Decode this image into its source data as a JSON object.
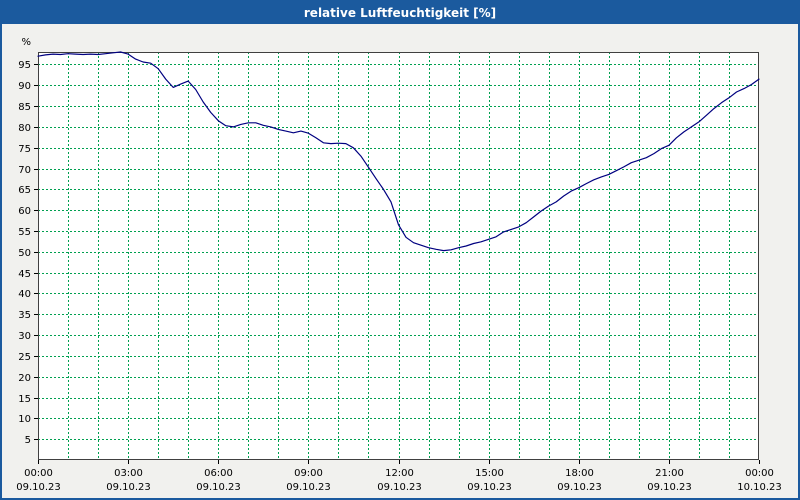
{
  "window": {
    "title": "relative Luftfeuchtigkeit [%]"
  },
  "colors": {
    "title_bar": "#1b5a9e",
    "title_text": "#ffffff",
    "frame": "#1b5a9e",
    "page_bg": "#f1f1ee",
    "plot_bg": "#ffffff",
    "plot_border": "#404040",
    "grid": "#00a050",
    "line": "#000080",
    "tick_text": "#000000"
  },
  "chart_data": {
    "type": "line",
    "title": "relative Luftfeuchtigkeit [%]",
    "ylabel": "%",
    "xlabel": "",
    "ylim": [
      0,
      98
    ],
    "xlim_hours": [
      0,
      24
    ],
    "grid": true,
    "grid_style": "green dashed, vertical every 1 hour, horizontal every 5 %",
    "legend": false,
    "y_ticks": [
      5,
      10,
      15,
      20,
      25,
      30,
      35,
      40,
      45,
      50,
      55,
      60,
      65,
      70,
      75,
      80,
      85,
      90,
      95
    ],
    "x_ticks": [
      {
        "hour": 0,
        "time": "00:00",
        "date": "09.10.23"
      },
      {
        "hour": 3,
        "time": "03:00",
        "date": "09.10.23"
      },
      {
        "hour": 6,
        "time": "06:00",
        "date": "09.10.23"
      },
      {
        "hour": 9,
        "time": "09:00",
        "date": "09.10.23"
      },
      {
        "hour": 12,
        "time": "12:00",
        "date": "09.10.23"
      },
      {
        "hour": 15,
        "time": "15:00",
        "date": "09.10.23"
      },
      {
        "hour": 18,
        "time": "18:00",
        "date": "09.10.23"
      },
      {
        "hour": 21,
        "time": "21:00",
        "date": "09.10.23"
      },
      {
        "hour": 24,
        "time": "00:00",
        "date": "10.10.23"
      }
    ],
    "series_name": "relative Luftfeuchtigkeit",
    "x_hours": [
      0,
      0.25,
      0.5,
      0.75,
      1,
      1.25,
      1.5,
      1.75,
      2,
      2.25,
      2.5,
      2.75,
      3,
      3.25,
      3.5,
      3.75,
      4,
      4.25,
      4.5,
      4.75,
      5,
      5.25,
      5.5,
      5.75,
      6,
      6.25,
      6.5,
      6.75,
      7,
      7.25,
      7.5,
      7.75,
      8,
      8.25,
      8.5,
      8.75,
      9,
      9.25,
      9.5,
      9.75,
      10,
      10.25,
      10.5,
      10.75,
      11,
      11.25,
      11.5,
      11.75,
      12,
      12.25,
      12.5,
      12.75,
      13,
      13.25,
      13.5,
      13.75,
      14,
      14.25,
      14.5,
      14.75,
      15,
      15.25,
      15.5,
      15.75,
      16,
      16.25,
      16.5,
      16.75,
      17,
      17.25,
      17.5,
      17.75,
      18,
      18.25,
      18.5,
      18.75,
      19,
      19.25,
      19.5,
      19.75,
      20,
      20.25,
      20.5,
      20.75,
      21,
      21.25,
      21.5,
      21.75,
      22,
      22.25,
      22.5,
      22.75,
      23,
      23.25,
      23.5,
      23.75,
      24
    ],
    "values": [
      97.0,
      97.3,
      97.5,
      97.4,
      97.6,
      97.5,
      97.4,
      97.5,
      97.4,
      97.6,
      97.8,
      98.0,
      97.5,
      96.3,
      95.6,
      95.3,
      94.0,
      91.5,
      89.5,
      90.3,
      91.0,
      89.0,
      86.0,
      83.5,
      81.5,
      80.3,
      80.0,
      80.6,
      81.0,
      81.0,
      80.4,
      80.0,
      79.4,
      79.0,
      78.6,
      79.0,
      78.5,
      77.4,
      76.2,
      76.0,
      76.1,
      76.0,
      75.0,
      73.0,
      70.3,
      67.6,
      65.0,
      62.0,
      56.5,
      53.5,
      52.2,
      51.6,
      51.0,
      50.6,
      50.3,
      50.5,
      51.0,
      51.4,
      52.0,
      52.4,
      53.0,
      53.6,
      54.8,
      55.4,
      56.0,
      57.0,
      58.4,
      59.8,
      61.0,
      62.0,
      63.4,
      64.6,
      65.4,
      66.4,
      67.3,
      68.0,
      68.6,
      69.5,
      70.4,
      71.4,
      72.0,
      72.6,
      73.6,
      74.8,
      75.6,
      77.4,
      78.8,
      80.0,
      81.2,
      82.8,
      84.4,
      85.8,
      87.0,
      88.4,
      89.2,
      90.2,
      91.5
    ]
  }
}
